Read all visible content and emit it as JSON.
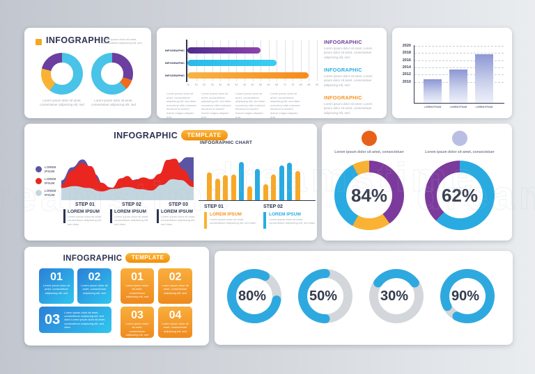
{
  "background": {
    "left": "#c2c7cf",
    "right": "#eaedf0"
  },
  "watermark_text": "dreamstime",
  "cards": {
    "donut_card": {
      "title": "INFOGRAPHIC",
      "bullet_color": "#f5a623",
      "note": "Lorem ipsum dolor sit amet, consectetuer adipiscing elit, sed",
      "captions": [
        "Lorem ipsum dolor sit amet, consectetuer adipiscing elit, sed",
        "Lorem ipsum dolor sit amet, consectetuer adipiscing elit, sed"
      ]
    },
    "hbar_card": {
      "row_label": "INFOGRAPHIC",
      "paragraph": "Lorem ipsum dolor sit amet, consectetuer adipiscing elit, sed diam nonummy nibh euismod tincidunt ut laoreet dolore magna aliquam erat",
      "sections": [
        {
          "title": "INFOGRAPHIC",
          "color": "#6C3D97",
          "text": "Lorem ipsum dolor sit amet, Lorem ipsum dolor sit amet, consectetuer adipiscing elit, sed"
        },
        {
          "title": "INFOGRAPHIC",
          "color": "#29ABE2",
          "text": "Lorem ipsum dolor sit amet, Lorem ipsum dolor sit amet, consectetuer adipiscing elit, sed"
        },
        {
          "title": "INFOGRAPHIC",
          "color": "#F7941E",
          "text": "Lorem ipsum dolor sit amet, Lorem ipsum dolor sit amet, consectetuer adipiscing elit, sed"
        }
      ]
    },
    "template_card": {
      "title": "INFOGRAPHIC",
      "badge": "TEMPLATE",
      "legend": [
        {
          "label": "LOREM IPSUM",
          "color": "#5B54A4"
        },
        {
          "label": "LOREM IPSUM",
          "color": "#E9261F"
        },
        {
          "label": "LOREM IPSUM",
          "color": "#C3D6E0"
        }
      ],
      "steps": [
        {
          "step": "STEP 01",
          "heading": "LOREM IPSUM",
          "text": "Lorem ipsum dolor sit amet, consectetuer adipiscing elit, sed diam"
        },
        {
          "step": "STEP 02",
          "heading": "LOREM IPSUM",
          "text": "Lorem ipsum dolor sit amet, consectetuer adipiscing elit, sed diam"
        },
        {
          "step": "STEP 03",
          "heading": "LOREM IPSUM",
          "text": "Lorem ipsum dolor sit amet, consectetuer adipiscing elit, sed diam"
        }
      ],
      "chart_title": "INFOGRAPHIC CHART",
      "chart_legend": [
        {
          "step": "STEP 01",
          "heading": "LOREM IPSUM",
          "title_color": "#F7941E",
          "mark_color": "#F9B233",
          "text": "Lorem ipsum dolor sit amet, consectetuer adipiscing elit, sed diam"
        },
        {
          "step": "STEP 02",
          "heading": "LOREM IPSUM",
          "title_color": "#29ABE2",
          "mark_color": "#29ABE2",
          "text": "Lorem ipsum dolor sit amet, consectetuer adipiscing elit, sed diam"
        }
      ]
    },
    "stat_card": {
      "items": [
        {
          "dot_color": "#E8611A",
          "caption": "Lorem ipsum dolor sit amet, consectetuer",
          "value": "84%"
        },
        {
          "dot_color": "#B9BFE4",
          "caption": "Lorem ipsum dolor sit amet, consectetuer",
          "value": "62%"
        }
      ]
    },
    "boxes_card": {
      "title": "INFOGRAPHIC",
      "badge": "TEMPLATE",
      "blue_boxes": [
        {
          "num": "01",
          "text": "Lorem ipsum dolor sit amet, consectetuer adipiscing elit, sed"
        },
        {
          "num": "02",
          "text": "Lorem ipsum dolor sit amet, consectetuer adipiscing elit, sed"
        },
        {
          "num": "03",
          "text": "Lorem ipsum dolor sit amet, consectetuer adipiscing elit, sed diam Lorem ipsum dolor sit amet, consectetuer adipiscing elit, sed diam"
        }
      ],
      "orange_boxes": [
        {
          "num": "01",
          "text": "Lorem ipsum dolor sit amet, consectetuer adipiscing elit, sed"
        },
        {
          "num": "02",
          "text": "Lorem ipsum dolor sit amet, consectetuer adipiscing elit, sed"
        },
        {
          "num": "03",
          "text": "Lorem ipsum dolor sit amet, consectetuer adipiscing elit, sed"
        },
        {
          "num": "04",
          "text": "Lorem ipsum dolor sit amet, consectetuer adipiscing elit, sed"
        }
      ]
    }
  },
  "chart_data": [
    {
      "id": "donut-small-1",
      "type": "pie",
      "donut": true,
      "slices": [
        {
          "value": 60,
          "color": "#49C3E8"
        },
        {
          "value": 19,
          "color": "#F9B233"
        },
        {
          "value": 21,
          "color": "#6B3FA0"
        }
      ]
    },
    {
      "id": "donut-small-2",
      "type": "pie",
      "donut": true,
      "slices": [
        {
          "value": 30,
          "color": "#6B3FA0"
        },
        {
          "value": 8,
          "color": "#EE6B1E"
        },
        {
          "value": 62,
          "color": "#49C3E8"
        }
      ]
    },
    {
      "id": "hbar",
      "type": "bar",
      "orientation": "horizontal",
      "categories": [
        "INFOGRAPHIC",
        "INFOGRAPHIC",
        "INFOGRAPHIC"
      ],
      "values": [
        55,
        65,
        85
      ],
      "xlim": [
        10,
        90
      ],
      "xticks": [
        10,
        15,
        20,
        25,
        30,
        35,
        40,
        45,
        50,
        55,
        60,
        65,
        70,
        75,
        80,
        85,
        90
      ],
      "bar_colors": [
        [
          "#4F2B8E",
          "#8E44AD"
        ],
        [
          "#2BB9EA",
          "#3ACDF2"
        ],
        [
          "#F9B344",
          "#F68B1D"
        ]
      ]
    },
    {
      "id": "year-bar",
      "type": "bar",
      "categories": [
        "LOREM IPSUM",
        "LOREM IPSUM",
        "LOREM IPSUM"
      ],
      "values": [
        42,
        58,
        85
      ],
      "ylim": [
        0,
        100
      ],
      "ytick_labels": [
        "2020",
        "2018",
        "2016",
        "2014",
        "2012",
        "2010"
      ]
    },
    {
      "id": "area-waves",
      "type": "area",
      "series": [
        {
          "name": "LOREM IPSUM",
          "color": "#5B54A4",
          "points": [
            [
              0,
              0.45
            ],
            [
              0.08,
              0.75
            ],
            [
              0.16,
              0.93
            ],
            [
              0.25,
              0.6
            ],
            [
              0.33,
              0.3
            ],
            [
              0.42,
              0.28
            ],
            [
              0.5,
              0.42
            ],
            [
              0.58,
              0.48
            ],
            [
              0.65,
              0.35
            ],
            [
              0.72,
              0.3
            ],
            [
              0.8,
              0.45
            ],
            [
              0.88,
              0.85
            ],
            [
              0.95,
              0.98
            ],
            [
              1,
              0.98
            ]
          ]
        },
        {
          "name": "LOREM IPSUM",
          "color": "#E9261F",
          "points": [
            [
              0,
              0.35
            ],
            [
              0.08,
              0.68
            ],
            [
              0.15,
              0.85
            ],
            [
              0.22,
              0.78
            ],
            [
              0.3,
              0.4
            ],
            [
              0.38,
              0.28
            ],
            [
              0.45,
              0.5
            ],
            [
              0.5,
              0.55
            ],
            [
              0.55,
              0.45
            ],
            [
              0.62,
              0.52
            ],
            [
              0.68,
              0.48
            ],
            [
              0.74,
              0.6
            ],
            [
              0.8,
              0.92
            ],
            [
              0.86,
              0.95
            ],
            [
              0.92,
              0.7
            ],
            [
              1,
              0.42
            ]
          ]
        },
        {
          "name": "LOREM IPSUM",
          "color": "#C3D6E0",
          "points": [
            [
              0,
              0.28
            ],
            [
              0.1,
              0.32
            ],
            [
              0.2,
              0.28
            ],
            [
              0.3,
              0.2
            ],
            [
              0.4,
              0.26
            ],
            [
              0.5,
              0.3
            ],
            [
              0.6,
              0.25
            ],
            [
              0.68,
              0.22
            ],
            [
              0.76,
              0.35
            ],
            [
              0.84,
              0.48
            ],
            [
              0.9,
              0.46
            ],
            [
              1,
              0.3
            ]
          ]
        }
      ]
    },
    {
      "id": "step-bars",
      "type": "bar",
      "title": "INFOGRAPHIC CHART",
      "values": [
        40,
        31,
        36,
        37,
        55,
        20,
        45,
        23,
        37,
        50,
        54,
        42
      ],
      "ylim": [
        0,
        58
      ],
      "colors": [
        "#F9A825",
        "#F9A825",
        "#F9A825",
        "#F9A825",
        "#29ABE2",
        "#F9A825",
        "#29ABE2",
        "#F9A825",
        "#F9A825",
        "#29ABE2",
        "#29ABE2",
        "#F9A825"
      ]
    },
    {
      "id": "donut-84",
      "type": "pie",
      "donut": true,
      "center_label": "84%",
      "slices": [
        {
          "value": 40,
          "color": "#7C3A9D"
        },
        {
          "value": 18,
          "color": "#F9B233"
        },
        {
          "value": 34,
          "color": "#29ABE2"
        },
        {
          "value": 8,
          "color": "#F9B233"
        }
      ]
    },
    {
      "id": "donut-62",
      "type": "pie",
      "donut": true,
      "center_label": "62%",
      "slices": [
        {
          "value": 62,
          "color": "#29ABE2"
        },
        {
          "value": 38,
          "color": "#7C3A9D"
        }
      ]
    },
    {
      "id": "progress-rings",
      "type": "pie",
      "donut": true,
      "labels": [
        "80%",
        "50%",
        "30%",
        "90%"
      ],
      "values": [
        80,
        50,
        30,
        90
      ],
      "color": "#2EA9E0",
      "track_color": "#D3D6DA",
      "rotations": [
        10,
        90,
        216,
        153
      ]
    }
  ]
}
